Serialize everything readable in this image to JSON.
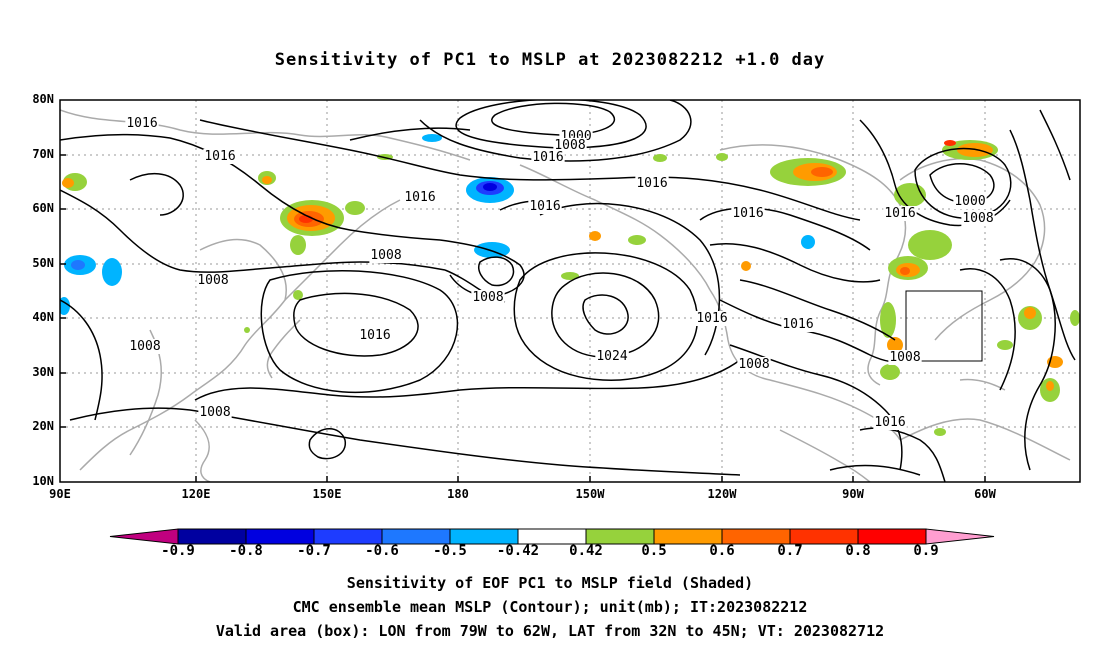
{
  "title": "Sensitivity of PC1 to MSLP at 2023082212 +1.0 day",
  "lat_labels": [
    "80N",
    "70N",
    "60N",
    "50N",
    "40N",
    "30N",
    "20N",
    "10N"
  ],
  "lon_labels": [
    "90E",
    "120E",
    "150E",
    "180",
    "150W",
    "120W",
    "90W",
    "60W"
  ],
  "contour_labels": [
    "1016",
    "1016",
    "1016",
    "1008",
    "1000",
    "1008",
    "1016",
    "1016",
    "1016",
    "1016",
    "1008",
    "1008",
    "1016",
    "1024",
    "1016",
    "1016",
    "1008",
    "1008",
    "1008",
    "1016",
    "1016",
    "1000",
    "1008",
    "1008"
  ],
  "colorbar": {
    "labels": [
      "-0.9",
      "-0.8",
      "-0.7",
      "-0.6",
      "-0.5",
      "-0.42",
      "0.42",
      "0.5",
      "0.6",
      "0.7",
      "0.8",
      "0.9"
    ],
    "colors": [
      "#c0007f",
      "#0000a0",
      "#0000e0",
      "#1e3cff",
      "#1e78ff",
      "#00b4ff",
      "#ffffff",
      "#96d23c",
      "#ff9b00",
      "#ff6400",
      "#ff3200",
      "#ff0000",
      "#ff9ed0"
    ]
  },
  "captions": [
    "Sensitivity of EOF PC1 to MSLP field (Shaded)",
    "CMC ensemble mean MSLP (Contour); unit(mb); IT:2023082212",
    "Valid area (box): LON from 79W to 62W, LAT from 32N to 45N; VT: 2023082712"
  ]
}
